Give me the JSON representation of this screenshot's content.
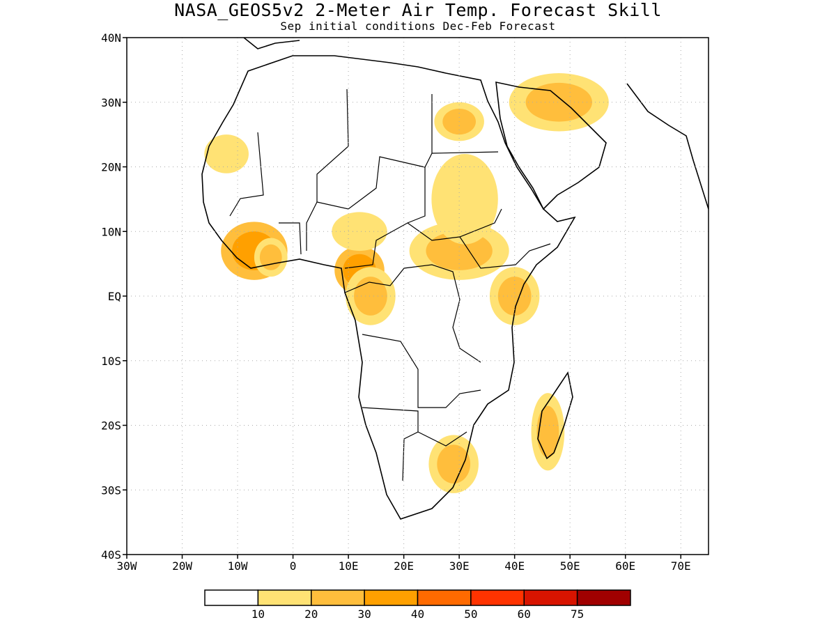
{
  "title": "NASA_GEOS5v2 2-Meter Air Temp. Forecast Skill",
  "subtitle": "Sep initial conditions  Dec-Feb Forecast",
  "map": {
    "lon_range": [
      -30,
      75
    ],
    "lat_range": [
      -40,
      40
    ],
    "grid": true,
    "lat_ticks": [
      {
        "value": 40,
        "label": "40N"
      },
      {
        "value": 30,
        "label": "30N"
      },
      {
        "value": 20,
        "label": "20N"
      },
      {
        "value": 10,
        "label": "10N"
      },
      {
        "value": 0,
        "label": "EQ"
      },
      {
        "value": -10,
        "label": "10S"
      },
      {
        "value": -20,
        "label": "20S"
      },
      {
        "value": -30,
        "label": "30S"
      },
      {
        "value": -40,
        "label": "40S"
      }
    ],
    "lon_ticks": [
      {
        "value": -30,
        "label": "30W"
      },
      {
        "value": -20,
        "label": "20W"
      },
      {
        "value": -10,
        "label": "10W"
      },
      {
        "value": 0,
        "label": "0"
      },
      {
        "value": 10,
        "label": "10E"
      },
      {
        "value": 20,
        "label": "20E"
      },
      {
        "value": 30,
        "label": "30E"
      },
      {
        "value": 40,
        "label": "40E"
      },
      {
        "value": 50,
        "label": "50E"
      },
      {
        "value": 60,
        "label": "60E"
      },
      {
        "value": 70,
        "label": "70E"
      }
    ]
  },
  "colorbar": {
    "colors": [
      "#ffffff",
      "#ffe274",
      "#ffbe3c",
      "#ffa000",
      "#ff6a00",
      "#ff3300",
      "#d81400",
      "#a00000"
    ],
    "labels": [
      "10",
      "20",
      "30",
      "40",
      "50",
      "60",
      "75"
    ]
  },
  "skill_regions": [
    {
      "lon": -7,
      "lat": 7,
      "rx": 4,
      "ry": 3,
      "level": 3
    },
    {
      "lon": -4,
      "lat": 6,
      "rx": 2,
      "ry": 2,
      "level": 2
    },
    {
      "lon": 12,
      "lat": 4,
      "rx": 3,
      "ry": 2.5,
      "level": 3
    },
    {
      "lon": 14,
      "lat": 0,
      "rx": 3,
      "ry": 3,
      "level": 2
    },
    {
      "lon": 30,
      "lat": 7,
      "rx": 6,
      "ry": 3,
      "level": 2
    },
    {
      "lon": 40,
      "lat": 0,
      "rx": 3,
      "ry": 3,
      "level": 2
    },
    {
      "lon": 30,
      "lat": 27,
      "rx": 3,
      "ry": 2,
      "level": 2
    },
    {
      "lon": 48,
      "lat": 30,
      "rx": 6,
      "ry": 3,
      "level": 2
    },
    {
      "lon": 46,
      "lat": -21,
      "rx": 2,
      "ry": 4,
      "level": 2
    },
    {
      "lon": 29,
      "lat": -26,
      "rx": 3,
      "ry": 3,
      "level": 2
    },
    {
      "lon": 12,
      "lat": 10,
      "rx": 5,
      "ry": 3,
      "level": 1
    },
    {
      "lon": 31,
      "lat": 15,
      "rx": 6,
      "ry": 7,
      "level": 1
    },
    {
      "lon": -12,
      "lat": 22,
      "rx": 4,
      "ry": 3,
      "level": 1
    }
  ]
}
